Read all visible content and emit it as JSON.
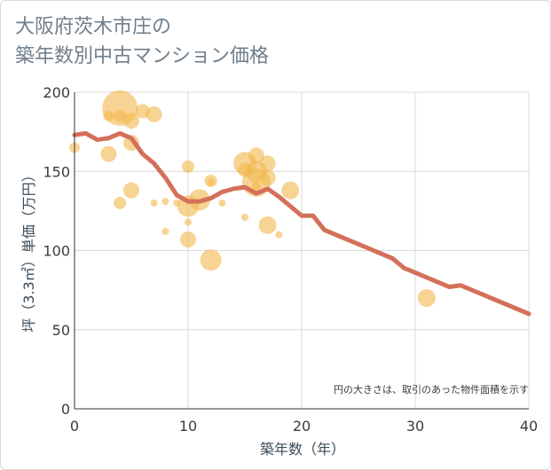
{
  "title_lines": [
    "大阪府茨木市庄の",
    "築年数別中古マンション価格"
  ],
  "chart_data": {
    "type": "scatter",
    "xlabel": "築年数（年）",
    "ylabel": "坪（3.3㎡）単価（万円）",
    "xlim": [
      0,
      40
    ],
    "ylim": [
      0,
      200
    ],
    "x_ticks": [
      "0",
      "10",
      "20",
      "30",
      "40"
    ],
    "y_ticks": [
      "0",
      "50",
      "100",
      "150",
      "200"
    ],
    "grid": true,
    "note": "円の大きさは、取引のあった物件面積を示す",
    "colors": {
      "bubble": "#f2b84b",
      "line": "#d4705a",
      "grid": "#d9d9d9"
    },
    "bubbles": [
      {
        "x": 0,
        "y": 165,
        "size": 12
      },
      {
        "x": 3,
        "y": 161,
        "size": 18
      },
      {
        "x": 3,
        "y": 185,
        "size": 12
      },
      {
        "x": 4,
        "y": 190,
        "size": 40
      },
      {
        "x": 4,
        "y": 185,
        "size": 14
      },
      {
        "x": 4,
        "y": 130,
        "size": 14
      },
      {
        "x": 5,
        "y": 182,
        "size": 18
      },
      {
        "x": 5,
        "y": 168,
        "size": 18
      },
      {
        "x": 5,
        "y": 138,
        "size": 18
      },
      {
        "x": 6,
        "y": 188,
        "size": 16
      },
      {
        "x": 7,
        "y": 186,
        "size": 18
      },
      {
        "x": 7,
        "y": 130,
        "size": 8
      },
      {
        "x": 8,
        "y": 131,
        "size": 8
      },
      {
        "x": 8,
        "y": 112,
        "size": 8
      },
      {
        "x": 9,
        "y": 130,
        "size": 8
      },
      {
        "x": 10,
        "y": 153,
        "size": 14
      },
      {
        "x": 10,
        "y": 128,
        "size": 24
      },
      {
        "x": 10,
        "y": 118,
        "size": 8
      },
      {
        "x": 10,
        "y": 107,
        "size": 18
      },
      {
        "x": 11,
        "y": 132,
        "size": 24
      },
      {
        "x": 12,
        "y": 144,
        "size": 14
      },
      {
        "x": 12,
        "y": 143,
        "size": 8
      },
      {
        "x": 12,
        "y": 94,
        "size": 24
      },
      {
        "x": 13,
        "y": 130,
        "size": 8
      },
      {
        "x": 15,
        "y": 155,
        "size": 26
      },
      {
        "x": 15,
        "y": 151,
        "size": 16
      },
      {
        "x": 15,
        "y": 121,
        "size": 8
      },
      {
        "x": 16,
        "y": 160,
        "size": 18
      },
      {
        "x": 16,
        "y": 150,
        "size": 24
      },
      {
        "x": 16,
        "y": 143,
        "size": 32
      },
      {
        "x": 16,
        "y": 141,
        "size": 10
      },
      {
        "x": 17,
        "y": 155,
        "size": 18
      },
      {
        "x": 17,
        "y": 146,
        "size": 18
      },
      {
        "x": 17,
        "y": 116,
        "size": 20
      },
      {
        "x": 18,
        "y": 110,
        "size": 8
      },
      {
        "x": 19,
        "y": 138,
        "size": 20
      },
      {
        "x": 31,
        "y": 70,
        "size": 20
      }
    ],
    "line": {
      "x": [
        0,
        1,
        2,
        3,
        4,
        5,
        6,
        7,
        8,
        9,
        10,
        11,
        12,
        13,
        14,
        15,
        16,
        17,
        18,
        19,
        20,
        21,
        22,
        23,
        24,
        25,
        26,
        27,
        28,
        29,
        30,
        31,
        32,
        33,
        34,
        35,
        36,
        37,
        38,
        39,
        40
      ],
      "y": [
        173,
        174,
        170,
        171,
        174,
        171,
        161,
        155,
        146,
        135,
        131,
        131,
        133,
        137,
        139,
        140,
        136,
        139,
        134,
        128,
        122,
        122,
        113,
        110,
        107,
        104,
        101,
        98,
        95,
        89,
        86,
        83,
        80,
        77,
        78,
        75,
        72,
        69,
        66,
        63,
        60
      ]
    }
  }
}
